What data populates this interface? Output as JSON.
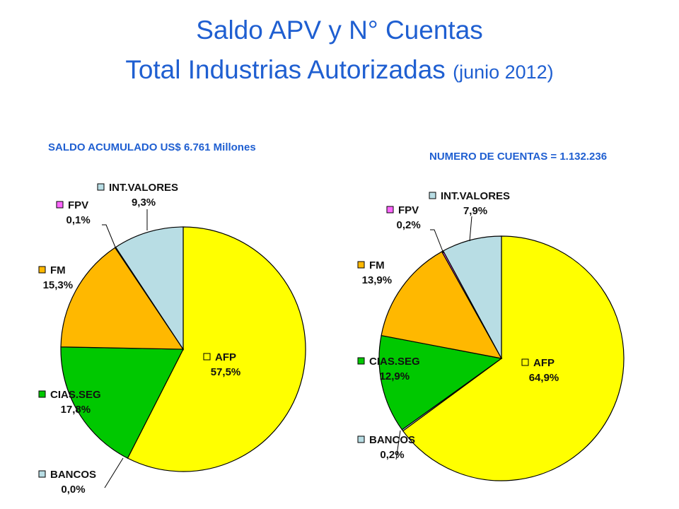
{
  "page": {
    "title_line1": "Saldo APV y N° Cuentas",
    "title_line2": "Total Industrias Autorizadas",
    "title_line2_suffix": "(junio 2012)"
  },
  "colors": {
    "title": "#1f5fd1",
    "AFP": "#ffff00",
    "CIAS.SEG": "#00c800",
    "FM": "#ffb800",
    "FPV": "#ff66ff",
    "INT.VALORES": "#b8dde4",
    "BANCOS": "#b8dde4"
  },
  "chart_data": [
    {
      "type": "pie",
      "title": "SALDO ACUMULADO US$ 6.761 Millones",
      "slices": [
        {
          "label": "AFP",
          "value": 57.5,
          "display": "57,5%",
          "color": "#ffff00"
        },
        {
          "label": "BANCOS",
          "value": 0.0,
          "display": "0,0%",
          "color": "#b8dde4"
        },
        {
          "label": "CIAS.SEG",
          "value": 17.8,
          "display": "17,8%",
          "color": "#00c800"
        },
        {
          "label": "FM",
          "value": 15.3,
          "display": "15,3%",
          "color": "#ffb800"
        },
        {
          "label": "FPV",
          "value": 0.1,
          "display": "0,1%",
          "color": "#ff66ff"
        },
        {
          "label": "INT.VALORES",
          "value": 9.3,
          "display": "9,3%",
          "color": "#b8dde4"
        }
      ]
    },
    {
      "type": "pie",
      "title": "NUMERO DE CUENTAS = 1.132.236",
      "slices": [
        {
          "label": "AFP",
          "value": 64.9,
          "display": "64,9%",
          "color": "#ffff00"
        },
        {
          "label": "BANCOS",
          "value": 0.2,
          "display": "0,2%",
          "color": "#b8dde4"
        },
        {
          "label": "CIAS.SEG",
          "value": 12.9,
          "display": "12,9%",
          "color": "#00c800"
        },
        {
          "label": "FM",
          "value": 13.9,
          "display": "13,9%",
          "color": "#ffb800"
        },
        {
          "label": "FPV",
          "value": 0.2,
          "display": "0,2%",
          "color": "#ff66ff"
        },
        {
          "label": "INT.VALORES",
          "value": 7.9,
          "display": "7,9%",
          "color": "#b8dde4"
        }
      ]
    }
  ]
}
